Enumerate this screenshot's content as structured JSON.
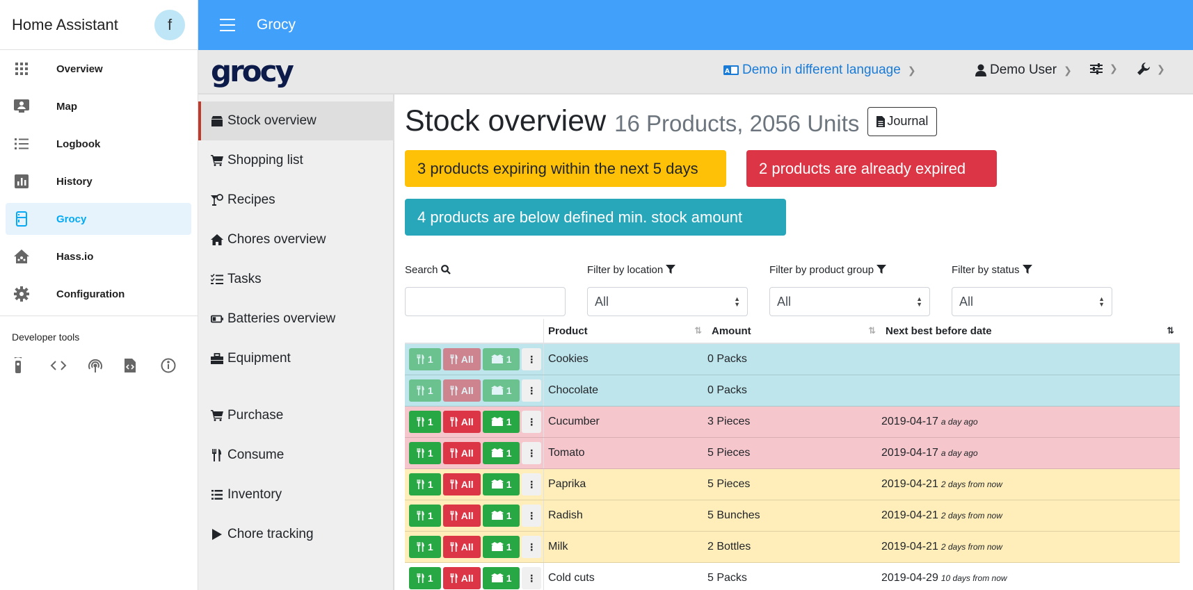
{
  "ha": {
    "title": "Home Assistant",
    "avatar_letter": "f",
    "nav": [
      {
        "label": "Overview",
        "icon": "grid-icon"
      },
      {
        "label": "Map",
        "icon": "map-icon"
      },
      {
        "label": "Logbook",
        "icon": "logbook-icon"
      },
      {
        "label": "History",
        "icon": "history-icon"
      },
      {
        "label": "Grocy",
        "icon": "fridge-icon",
        "active": true
      },
      {
        "label": "Hass.io",
        "icon": "hassio-icon"
      },
      {
        "label": "Configuration",
        "icon": "gear-icon"
      }
    ],
    "developer_tools_label": "Developer tools",
    "dev_tools": [
      "remote-icon",
      "code-icon",
      "broadcast-icon",
      "file-code-icon",
      "info-icon"
    ]
  },
  "topbar": {
    "title": "Grocy"
  },
  "grocy_header": {
    "logo": "grocy",
    "language_link": "Demo in different language",
    "user": "Demo User"
  },
  "grocy_nav": [
    {
      "label": "Stock overview",
      "icon": "box-icon",
      "active": true
    },
    {
      "label": "Shopping list",
      "icon": "cart-icon"
    },
    {
      "label": "Recipes",
      "icon": "recipe-icon"
    },
    {
      "label": "Chores overview",
      "icon": "home-icon"
    },
    {
      "label": "Tasks",
      "icon": "tasks-icon"
    },
    {
      "label": "Batteries overview",
      "icon": "battery-icon"
    },
    {
      "label": "Equipment",
      "icon": "toolbox-icon"
    },
    {
      "label": "Purchase",
      "icon": "cart-icon"
    },
    {
      "label": "Consume",
      "icon": "utensils-icon"
    },
    {
      "label": "Inventory",
      "icon": "list-icon"
    },
    {
      "label": "Chore tracking",
      "icon": "play-icon"
    }
  ],
  "main": {
    "title": "Stock overview",
    "subtitle": "16 Products, 2056 Units",
    "journal_label": "Journal",
    "alerts": {
      "expiring": "3 products expiring within the next 5 days",
      "expired": "2 products are already expired",
      "min_stock": "4 products are below defined min. stock amount"
    },
    "filters": {
      "search_label": "Search",
      "location_label": "Filter by location",
      "location_value": "All",
      "group_label": "Filter by product group",
      "group_value": "All",
      "status_label": "Filter by status",
      "status_value": "All"
    },
    "table": {
      "headers": {
        "product": "Product",
        "amount": "Amount",
        "date": "Next best before date"
      },
      "button_labels": {
        "consume": "1",
        "all": "All",
        "open": "1"
      },
      "rows": [
        {
          "product": "Cookies",
          "amount": "0 Packs",
          "date": "",
          "relative": "",
          "status": "info",
          "faded": true
        },
        {
          "product": "Chocolate",
          "amount": "0 Packs",
          "date": "",
          "relative": "",
          "status": "info",
          "faded": true
        },
        {
          "product": "Cucumber",
          "amount": "3 Pieces",
          "date": "2019-04-17",
          "relative": "a day ago",
          "status": "danger",
          "faded": false
        },
        {
          "product": "Tomato",
          "amount": "5 Pieces",
          "date": "2019-04-17",
          "relative": "a day ago",
          "status": "danger",
          "faded": false
        },
        {
          "product": "Paprika",
          "amount": "5 Pieces",
          "date": "2019-04-21",
          "relative": "2 days from now",
          "status": "warn",
          "faded": false
        },
        {
          "product": "Radish",
          "amount": "5 Bunches",
          "date": "2019-04-21",
          "relative": "2 days from now",
          "status": "warn",
          "faded": false
        },
        {
          "product": "Milk",
          "amount": "2 Bottles",
          "date": "2019-04-21",
          "relative": "2 days from now",
          "status": "warn",
          "faded": false
        },
        {
          "product": "Cold cuts",
          "amount": "5 Packs",
          "date": "2019-04-29",
          "relative": "10 days from now",
          "status": "plain",
          "faded": false
        }
      ]
    }
  }
}
